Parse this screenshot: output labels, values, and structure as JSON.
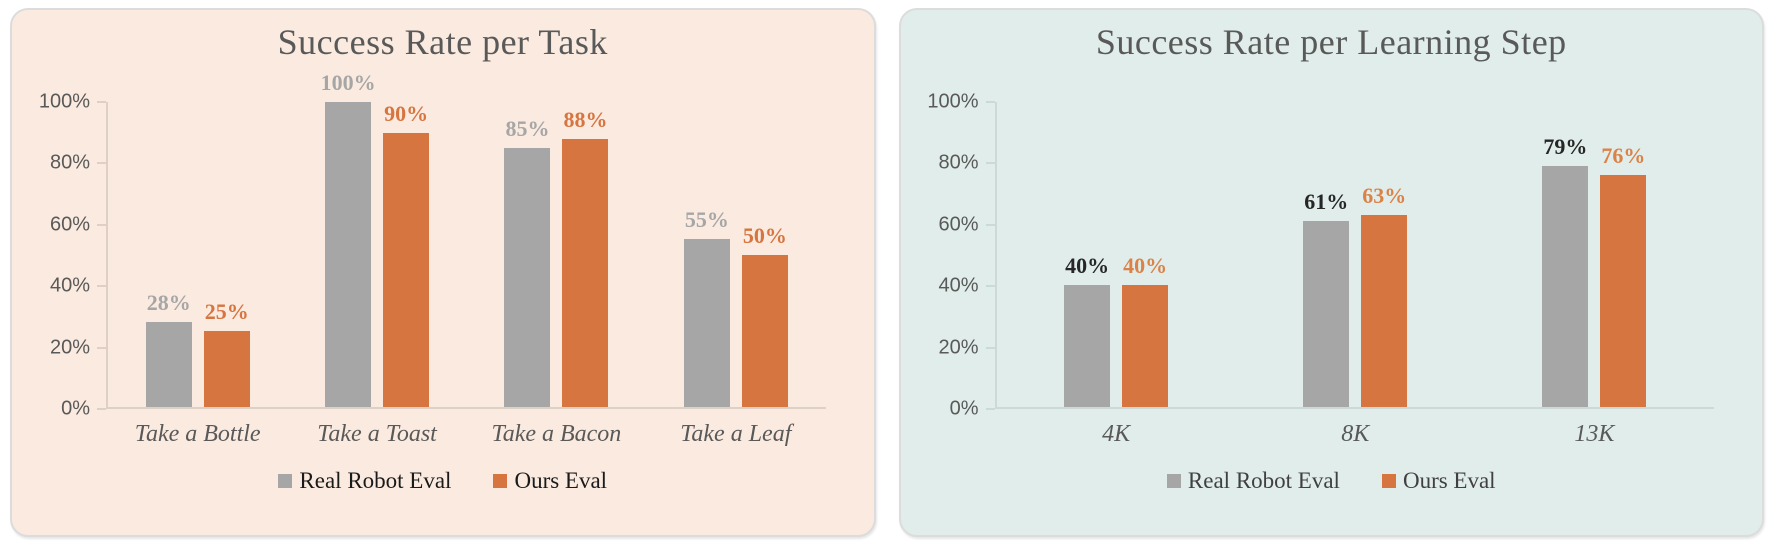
{
  "page": {
    "background": "#ffffff"
  },
  "chart_data": [
    {
      "type": "bar",
      "title": "Success Rate per Task",
      "categories": [
        "Take a Bottle",
        "Take a Toast",
        "Take a Bacon",
        "Take a Leaf"
      ],
      "series": [
        {
          "name": "Real Robot Eval",
          "values": [
            28,
            100,
            85,
            55
          ]
        },
        {
          "name": "Ours Eval",
          "values": [
            25,
            90,
            88,
            50
          ]
        }
      ],
      "value_labels": [
        [
          "28%",
          "100%",
          "85%",
          "55%"
        ],
        [
          "25%",
          "90%",
          "88%",
          "50%"
        ]
      ],
      "xlabel": "",
      "ylabel": "",
      "ylim": [
        0,
        100
      ],
      "y_tick_labels": [
        "0%",
        "20%",
        "40%",
        "60%",
        "80%",
        "100%"
      ],
      "y_tick_values": [
        0,
        20,
        40,
        60,
        80,
        100
      ],
      "grid": false,
      "legend_position": "bottom",
      "legend_entries": [
        "Real Robot Eval",
        "Ours Eval"
      ],
      "style": {
        "panel_background": "#faeadf",
        "axis_color": "#ddd0c7",
        "text_color": "#595959",
        "series_colors": [
          "#a6a6a6",
          "#d6753f"
        ],
        "value_label_colors": [
          "#a6a6a6",
          "#d6753f"
        ],
        "legend_text_color": "#1a1a1a"
      }
    },
    {
      "type": "bar",
      "title": "Success Rate per Learning Step",
      "categories": [
        "4K",
        "8K",
        "13K"
      ],
      "series": [
        {
          "name": "Real Robot Eval",
          "values": [
            40,
            61,
            79
          ]
        },
        {
          "name": "Ours Eval",
          "values": [
            40,
            63,
            76
          ]
        }
      ],
      "value_labels": [
        [
          "40%",
          "61%",
          "79%"
        ],
        [
          "40%",
          "63%",
          "76%"
        ]
      ],
      "xlabel": "",
      "ylabel": "",
      "ylim": [
        0,
        100
      ],
      "y_tick_labels": [
        "0%",
        "20%",
        "40%",
        "60%",
        "80%",
        "100%"
      ],
      "y_tick_values": [
        0,
        20,
        40,
        60,
        80,
        100
      ],
      "grid": false,
      "legend_position": "bottom",
      "legend_entries": [
        "Real Robot Eval",
        "Ours Eval"
      ],
      "style": {
        "panel_background": "#e0edea",
        "axis_color": "#cbdad6",
        "text_color": "#595959",
        "series_colors": [
          "#a6a6a6",
          "#d6753f"
        ],
        "value_label_colors": [
          "#262626",
          "#db8247"
        ],
        "legend_text_color": "#404040"
      }
    }
  ]
}
